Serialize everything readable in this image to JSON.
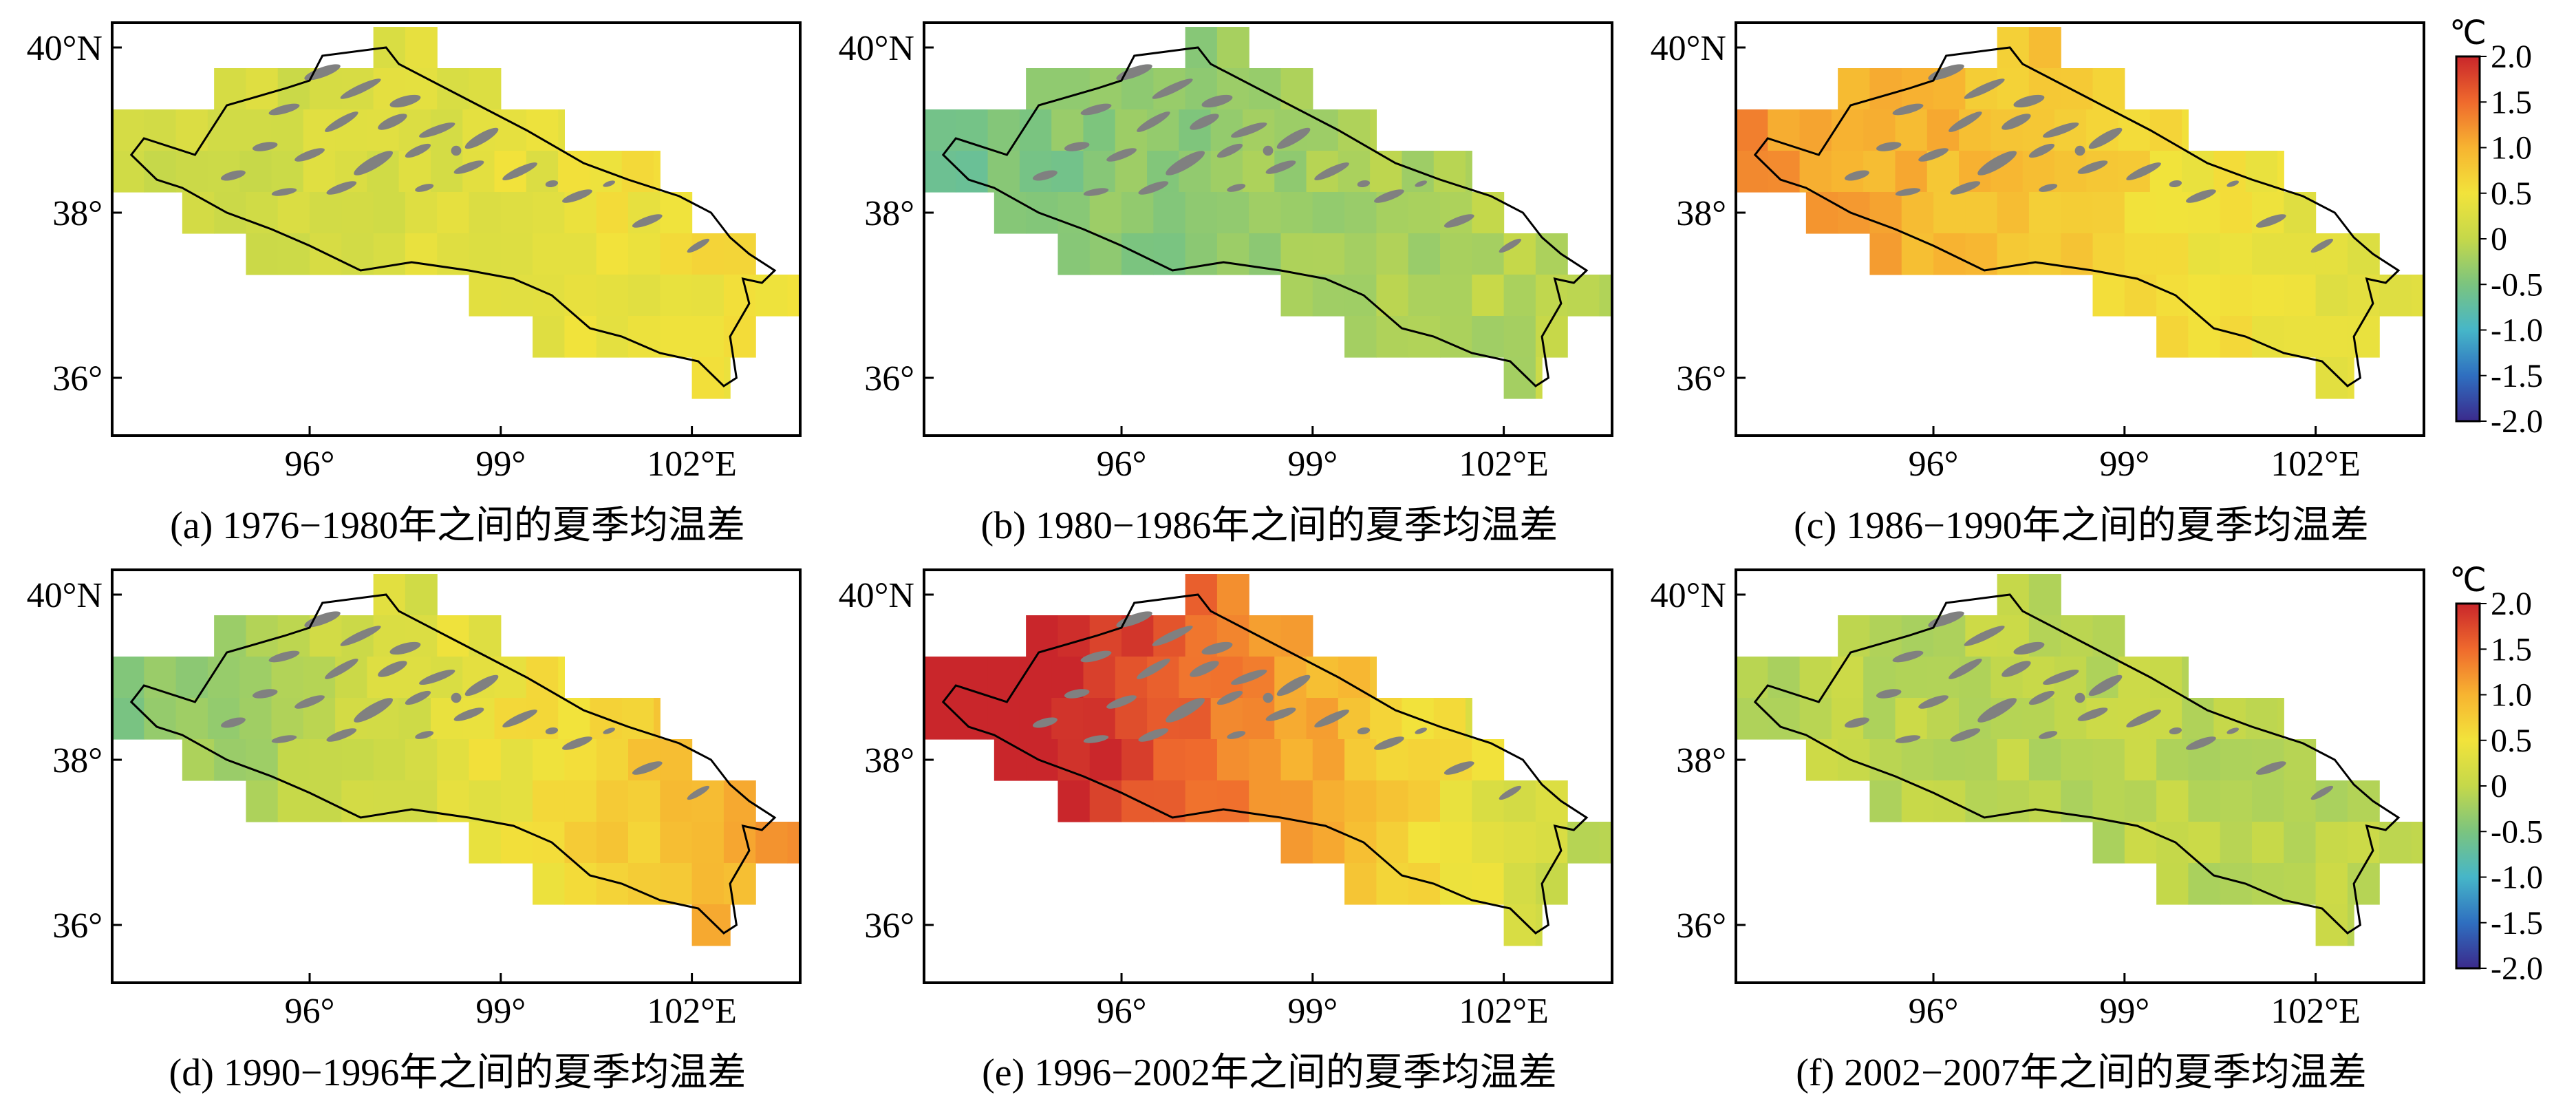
{
  "figure": {
    "unit_label": "℃",
    "legend_ticks": [
      "2.0",
      "1.5",
      "1.0",
      "0.5",
      "0",
      "-0.5",
      "-1.0",
      "-1.5",
      "-2.0"
    ],
    "lat_ticks": [
      "40°N",
      "38°",
      "36°"
    ],
    "lon_ticks": [
      "96°",
      "99°",
      "102°E"
    ],
    "colors": {
      "colormap": [
        "#3b2a8c",
        "#2f6fc0",
        "#46b6c8",
        "#7bc47f",
        "#c5d84a",
        "#f2e33b",
        "#f7b431",
        "#ef6a2d",
        "#c9262b"
      ],
      "glacier": "#808080",
      "boundary": "#000000"
    }
  },
  "panels": [
    {
      "id": "a",
      "caption": "(a) 1976−1980年之间的夏季均温差",
      "mean": 0.3,
      "gradient": 0.05
    },
    {
      "id": "b",
      "caption": "(b) 1980−1986年之间的夏季均温差",
      "mean": -0.3,
      "gradient": 0.05
    },
    {
      "id": "c",
      "caption": "(c) 1986−1990年之间的夏季均温差",
      "mean": 0.75,
      "gradient": -0.1
    },
    {
      "id": "d",
      "caption": "(d) 1990−1996年之间的夏季均温差",
      "mean": 0.3,
      "gradient": 0.15
    },
    {
      "id": "e",
      "caption": "(e) 1996−2002年之间的夏季均温差",
      "mean": 1.3,
      "gradient": -0.25
    },
    {
      "id": "f",
      "caption": "(f) 2002−2007年之间的夏季均温差",
      "mean": -0.05,
      "gradient": 0.0
    }
  ]
}
